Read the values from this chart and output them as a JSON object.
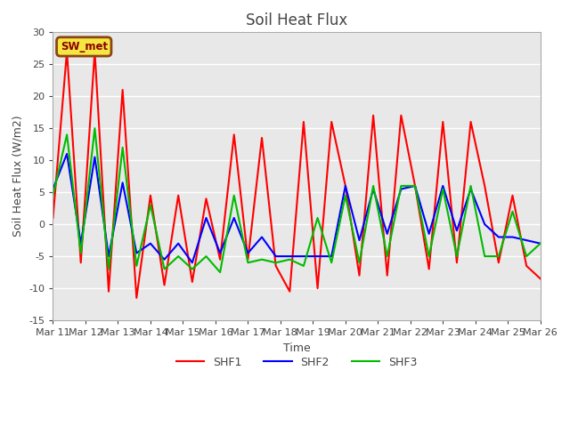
{
  "title": "Soil Heat Flux",
  "xlabel": "Time",
  "ylabel": "Soil Heat Flux (W/m2)",
  "ylim": [
    -15,
    30
  ],
  "yticks": [
    -15,
    -10,
    -5,
    0,
    5,
    10,
    15,
    20,
    25,
    30
  ],
  "figure_bg": "#ffffff",
  "axes_bg": "#e8e8e8",
  "grid_color": "white",
  "station_label": "SW_met",
  "x_labels": [
    "Mar 11",
    "Mar 12",
    "Mar 13",
    "Mar 14",
    "Mar 15",
    "Mar 16",
    "Mar 17",
    "Mar 18",
    "Mar 19",
    "Mar 20",
    "Mar 21",
    "Mar 22",
    "Mar 23",
    "Mar 24",
    "Mar 25",
    "Mar 26"
  ],
  "SHF1": [
    1,
    27,
    -6,
    27,
    -10.5,
    21,
    -11.5,
    4.5,
    -9.5,
    4.5,
    -9,
    4,
    -5.5,
    14,
    -5.5,
    13.5,
    -6.5,
    -10.5,
    16,
    -10,
    16,
    6,
    -8,
    17,
    -8,
    17,
    6,
    -7,
    16,
    -6,
    16,
    6,
    -6,
    4.5,
    -6.5,
    -8.5
  ],
  "SHF2": [
    5.5,
    11,
    -3,
    10.5,
    -5,
    6.5,
    -4.5,
    -3,
    -5.5,
    -3,
    -6,
    1,
    -4.5,
    1,
    -4.5,
    -2,
    -5,
    -5,
    -5,
    -5,
    -5,
    6,
    -2.5,
    5.5,
    -1.5,
    5.5,
    6,
    -1.5,
    6,
    -1,
    5.5,
    0,
    -2,
    -2,
    -2.5,
    -3
  ],
  "SHF3": [
    4.5,
    14,
    -4.5,
    15,
    -7,
    12,
    -6.5,
    3,
    -7,
    -5,
    -7,
    -5,
    -7.5,
    4.5,
    -6,
    -5.5,
    -6,
    -5.5,
    -6.5,
    1,
    -6,
    4.5,
    -6,
    6,
    -5,
    6,
    6,
    -5,
    5.5,
    -5,
    6,
    -5,
    -5,
    2,
    -5,
    -3
  ],
  "shf1_color": "#ff0000",
  "shf2_color": "#0000ff",
  "shf3_color": "#00bb00",
  "line_width": 1.5,
  "tick_fontsize": 8,
  "title_fontsize": 12,
  "label_fontsize": 9
}
